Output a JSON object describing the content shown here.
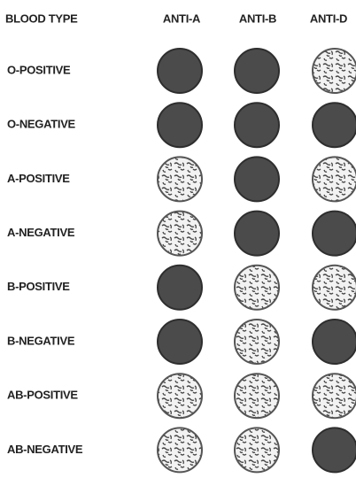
{
  "header": {
    "columns": [
      "BLOOD TYPE",
      "ANTI-A",
      "ANTI-B",
      "ANTI-D"
    ]
  },
  "rows": [
    "O-POSITIVE",
    "O-NEGATIVE",
    "A-POSITIVE",
    "A-NEGATIVE",
    "B-POSITIVE",
    "B-NEGATIVE",
    "AB-POSITIVE",
    "AB-NEGATIVE"
  ]
}
